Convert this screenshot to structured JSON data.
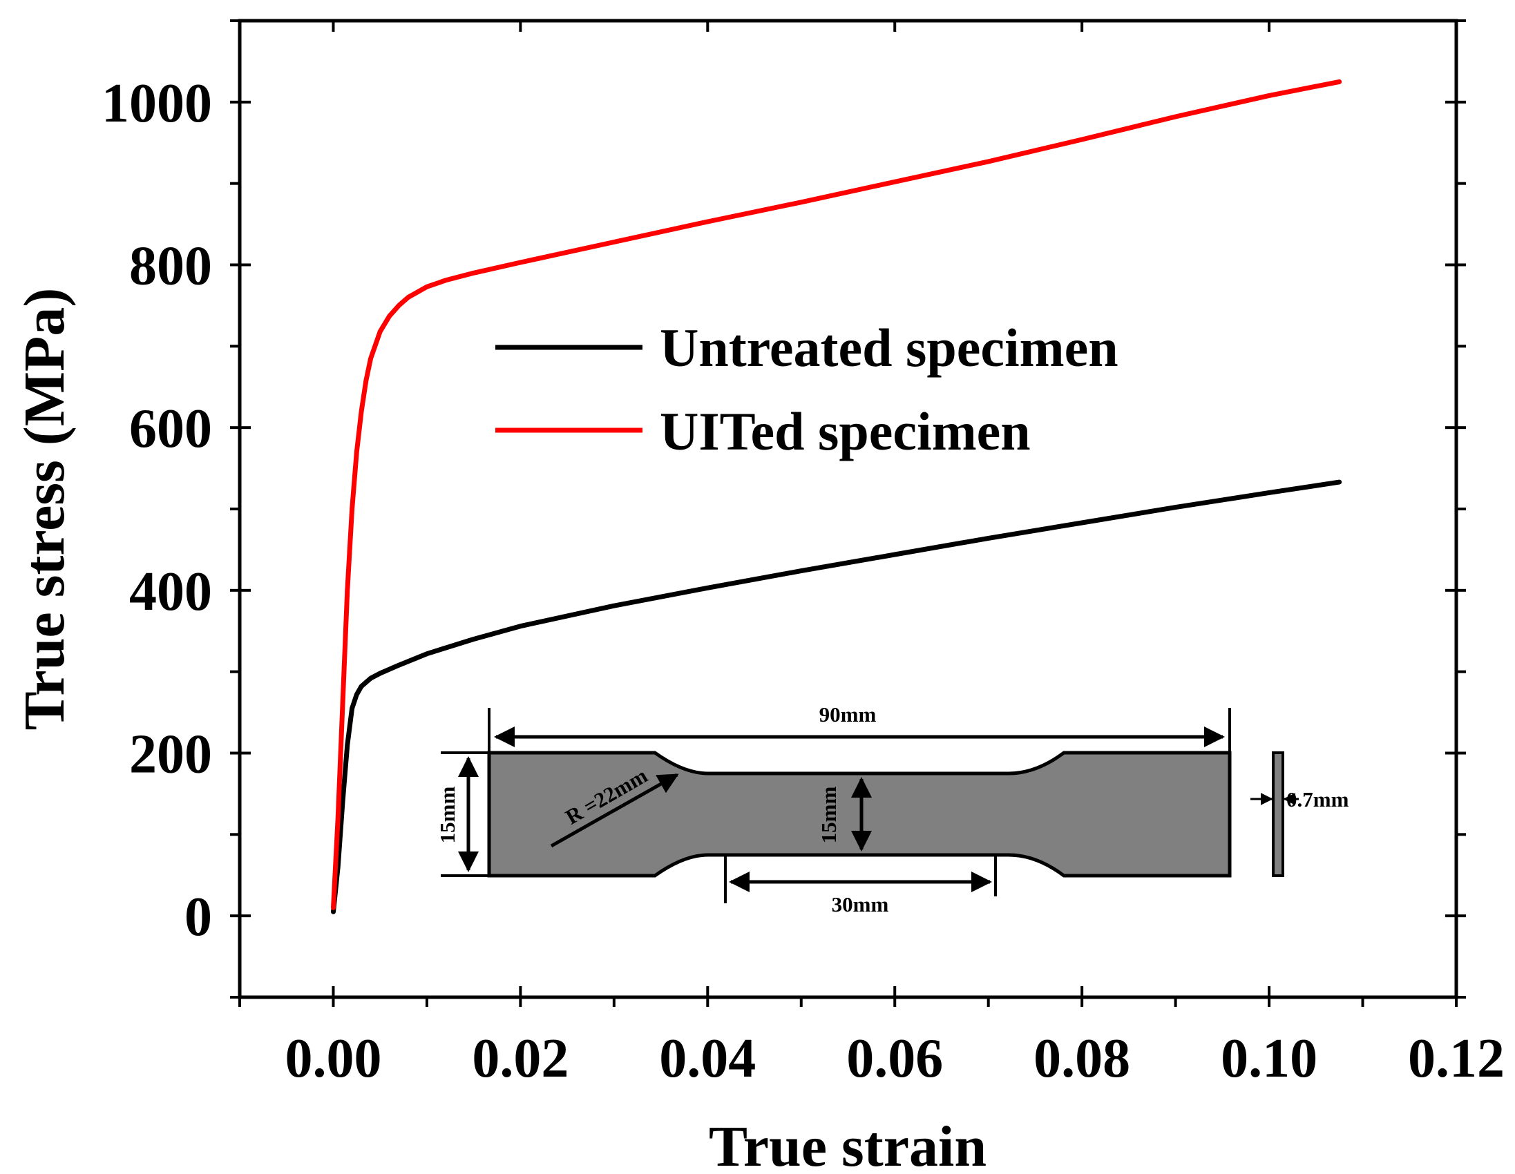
{
  "chart_data": {
    "type": "line",
    "xlabel": "True strain",
    "ylabel": "True stress (MPa)",
    "xlim": [
      -0.01,
      0.12
    ],
    "ylim": [
      -100,
      1100
    ],
    "x_ticks": [
      0.0,
      0.02,
      0.04,
      0.06,
      0.08,
      0.1,
      0.12
    ],
    "x_tick_labels": [
      "0.00",
      "0.02",
      "0.04",
      "0.06",
      "0.08",
      "0.10",
      "0.12"
    ],
    "y_ticks": [
      0,
      200,
      400,
      600,
      800,
      1000
    ],
    "y_tick_labels": [
      "0",
      "200",
      "400",
      "600",
      "800",
      "1000"
    ],
    "grid": false,
    "legend_position": "center",
    "series": [
      {
        "name": "Untreated specimen",
        "color": "#000000",
        "x": [
          0.0,
          0.0005,
          0.001,
          0.0015,
          0.002,
          0.0025,
          0.003,
          0.004,
          0.005,
          0.007,
          0.01,
          0.015,
          0.02,
          0.03,
          0.04,
          0.05,
          0.06,
          0.07,
          0.08,
          0.09,
          0.1,
          0.1075
        ],
        "y": [
          5,
          60,
          140,
          210,
          255,
          272,
          282,
          292,
          298,
          308,
          322,
          340,
          356,
          381,
          403,
          424,
          444,
          464,
          483,
          502,
          520,
          533
        ]
      },
      {
        "name": "UITed specimen",
        "color": "#ff0000",
        "x": [
          0.0,
          0.0005,
          0.001,
          0.0015,
          0.002,
          0.0025,
          0.003,
          0.0035,
          0.004,
          0.005,
          0.006,
          0.007,
          0.008,
          0.01,
          0.012,
          0.015,
          0.02,
          0.03,
          0.04,
          0.05,
          0.06,
          0.07,
          0.08,
          0.09,
          0.1,
          0.1075
        ],
        "y": [
          10,
          120,
          260,
          400,
          500,
          570,
          620,
          658,
          685,
          718,
          737,
          750,
          760,
          773,
          781,
          790,
          803,
          828,
          853,
          877,
          902,
          927,
          954,
          982,
          1008,
          1025
        ]
      }
    ]
  },
  "inset": {
    "overall_length": "90mm",
    "gauge_length": "30mm",
    "radius": "R =22mm",
    "grip_width": "15mm",
    "gauge_width": "15mm",
    "thickness": "0.7mm"
  }
}
